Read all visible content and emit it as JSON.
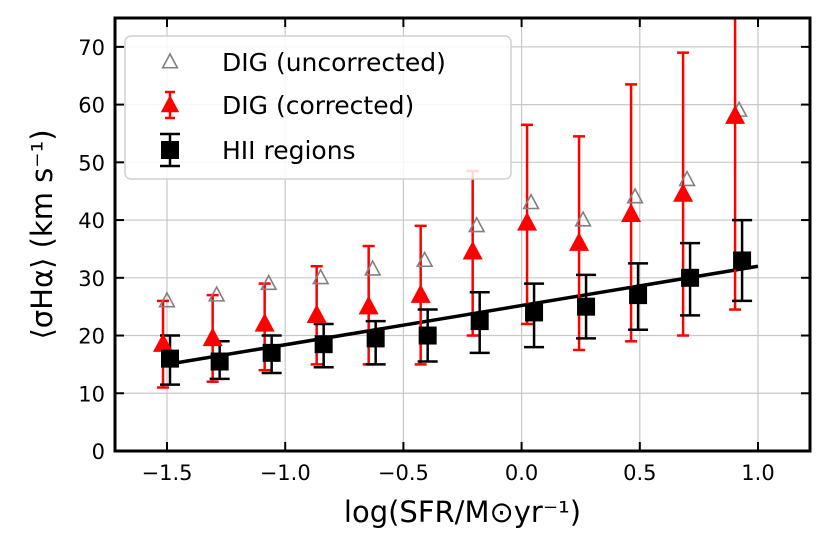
{
  "chart_data": {
    "type": "scatter",
    "xlabel": "log(SFR/M⊙yr⁻¹)",
    "ylabel": "⟨σHα⟩ (km s⁻¹)",
    "xlim": [
      -1.72,
      1.22
    ],
    "ylim": [
      0,
      75
    ],
    "xticks": [
      -1.5,
      -1.0,
      -0.5,
      0.0,
      0.5,
      1.0
    ],
    "xtick_labels": [
      "−1.5",
      "−1.0",
      "−0.5",
      "0.0",
      "0.5",
      "1.0"
    ],
    "yticks": [
      0,
      10,
      20,
      30,
      40,
      50,
      60,
      70
    ],
    "ytick_labels": [
      "0",
      "10",
      "20",
      "30",
      "40",
      "50",
      "60",
      "70"
    ],
    "grid": true,
    "legend_position": "top-left",
    "x": [
      -1.5,
      -1.29,
      -1.07,
      -0.85,
      -0.63,
      -0.41,
      -0.19,
      0.04,
      0.26,
      0.48,
      0.7,
      0.92
    ],
    "series": [
      {
        "name": "DIG (uncorrected)",
        "marker": "open-triangle",
        "color": "#808080",
        "values": [
          26,
          27,
          29,
          30,
          31.5,
          33,
          39,
          43,
          40,
          44,
          47,
          59
        ]
      },
      {
        "name": "DIG (corrected)",
        "marker": "filled-triangle",
        "color": "#ff0000",
        "values": [
          18.5,
          19.5,
          22,
          23.5,
          25,
          27,
          34.5,
          39.5,
          36,
          41,
          44.5,
          58
        ],
        "err_low": [
          11,
          12,
          14,
          15,
          15,
          15,
          20,
          22,
          17.5,
          19,
          20,
          24.5
        ],
        "err_high": [
          26,
          27,
          29,
          32,
          35.5,
          39,
          48.5,
          56.5,
          54.5,
          63.5,
          69,
          75
        ]
      },
      {
        "name": "HII regions",
        "marker": "filled-square",
        "color": "#000000",
        "values": [
          16,
          15.5,
          17,
          18.5,
          19.5,
          20,
          22.5,
          24,
          25,
          27,
          30,
          33
        ],
        "err_low": [
          11.5,
          12.5,
          13.5,
          14.5,
          15,
          15.5,
          17,
          18,
          19.5,
          21,
          23.5,
          26
        ],
        "err_high": [
          20,
          19,
          20,
          22,
          22.5,
          24.5,
          27.5,
          29,
          30.5,
          32.5,
          36,
          40
        ]
      }
    ],
    "fit_line": {
      "color": "#000000",
      "x": [
        -1.5,
        1.0
      ],
      "y": [
        15,
        32
      ]
    }
  }
}
